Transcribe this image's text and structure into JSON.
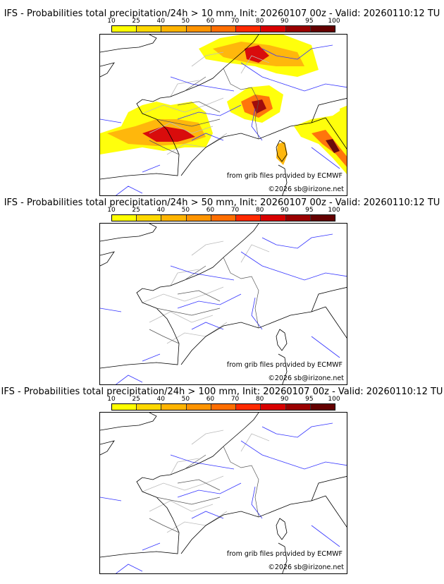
{
  "colorbar": {
    "ticks": [
      "10",
      "25",
      "40",
      "50",
      "60",
      "70",
      "80",
      "90",
      "95",
      "100"
    ],
    "colors": [
      "#ffff00",
      "#ffd800",
      "#ffb400",
      "#ff9400",
      "#ff6e00",
      "#ff2a00",
      "#d80000",
      "#9a0000",
      "#640000"
    ]
  },
  "panels": [
    {
      "title": "IFS - Probabilities total precipitation/24h > 10 mm, Init: 20260107 00z - Valid: 20260110:12 TU",
      "threshold_mm": 10
    },
    {
      "title": "IFS - Probabilities total precipitation/24h > 50 mm, Init: 20260107 00z - Valid: 20260110:12 TU",
      "threshold_mm": 50
    },
    {
      "title": "IFS - Probabilities total precipitation/24h > 100 mm, Init: 20260107 00z - Valid: 20260110:12 TU",
      "threshold_mm": 100
    }
  ],
  "credits": {
    "source": "from grib files provided by ECMWF",
    "copyright": "©2026 sb@irizone.net"
  }
}
